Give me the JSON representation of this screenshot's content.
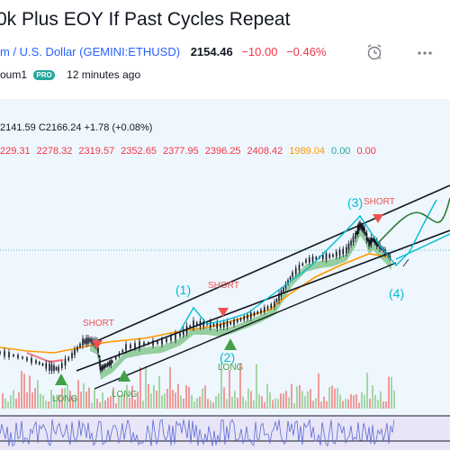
{
  "header": {
    "title": "0k Plus EOY If Past Cycles Repeat",
    "symbol_name": "m / U.S. Dollar (GEMINI:ETHUSD)",
    "price": "2154.46",
    "change": "−10.00",
    "change_pct": "−0.46%",
    "author": "oum1",
    "pro_badge": "PRO",
    "time_ago": "12 minutes ago",
    "alarm_icon": "alarm-clock-icon",
    "more_icon": "more-icon"
  },
  "chart_data": {
    "type": "candlestick-annotated",
    "ohlc_text": "2141.59  C2166.24  +1.78 (+0.08%)",
    "indicator_values": [
      {
        "value": "229.31",
        "color": "#f23645"
      },
      {
        "value": "2278.32",
        "color": "#f23645"
      },
      {
        "value": "2319.57",
        "color": "#f23645"
      },
      {
        "value": "2352.65",
        "color": "#f23645"
      },
      {
        "value": "2377.95",
        "color": "#f23645"
      },
      {
        "value": "2396.25",
        "color": "#f23645"
      },
      {
        "value": "2408.42",
        "color": "#f23645"
      },
      {
        "value": "1989.04",
        "color": "#ff9800"
      },
      {
        "value": "0.00",
        "color": "#26a69a"
      },
      {
        "value": "0.00",
        "color": "#f23645"
      }
    ],
    "annotations": {
      "short_label": "SHORT",
      "long_label": "LONG",
      "wave1": "(1)",
      "wave2": "(2)",
      "wave3": "(3)",
      "wave4": "(4)"
    },
    "colors": {
      "price_up": "#26a69a",
      "price_down": "#f23645",
      "ma_orange": "#ff9800",
      "ribbon_green": "#4caf50",
      "projection": "#00bcd4",
      "forecast_green": "#2e7d32",
      "short_red": "#ef5350",
      "long_green": "#43a047"
    }
  }
}
